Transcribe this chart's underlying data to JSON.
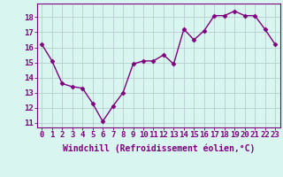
{
  "x": [
    0,
    1,
    2,
    3,
    4,
    5,
    6,
    7,
    8,
    9,
    10,
    11,
    12,
    13,
    14,
    15,
    16,
    17,
    18,
    19,
    20,
    21,
    22,
    23
  ],
  "y": [
    16.2,
    15.1,
    13.6,
    13.4,
    13.3,
    12.3,
    11.1,
    12.1,
    13.0,
    14.9,
    15.1,
    15.1,
    15.5,
    14.9,
    17.2,
    16.5,
    17.1,
    18.1,
    18.1,
    18.4,
    18.1,
    18.1,
    17.2,
    16.2
  ],
  "line_color": "#800080",
  "marker": "D",
  "marker_size": 2.5,
  "line_width": 1.0,
  "bg_color": "#d8f5f0",
  "grid_color": "#b0c8c8",
  "xlabel": "Windchill (Refroidissement éolien,°C)",
  "xlabel_fontsize": 7,
  "ylabel_ticks": [
    11,
    12,
    13,
    14,
    15,
    16,
    17,
    18
  ],
  "xtick_labels": [
    "0",
    "1",
    "2",
    "3",
    "4",
    "5",
    "6",
    "7",
    "8",
    "9",
    "10",
    "11",
    "12",
    "13",
    "14",
    "15",
    "16",
    "17",
    "18",
    "19",
    "20",
    "21",
    "22",
    "23"
  ],
  "xlim": [
    -0.5,
    23.5
  ],
  "ylim": [
    10.7,
    18.9
  ],
  "tick_fontsize": 6.5,
  "spine_color": "#800080"
}
